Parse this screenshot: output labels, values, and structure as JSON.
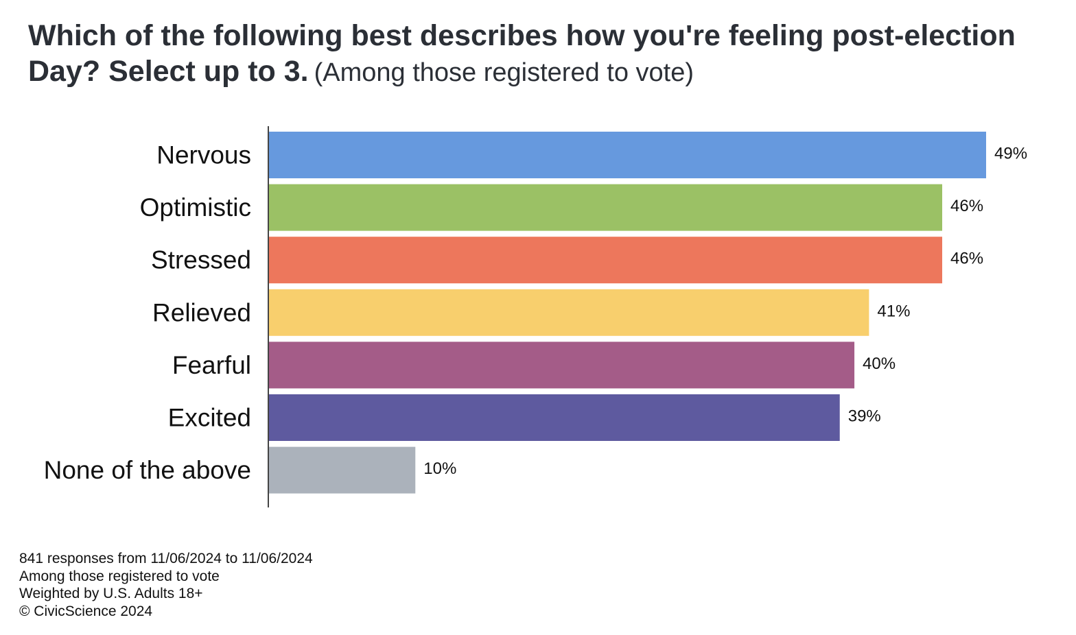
{
  "chart_data": {
    "type": "bar",
    "orientation": "horizontal",
    "title": "Which of the following best describes how you're feeling post-election Day? Select up to 3.",
    "subtitle": "(Among those registered to vote)",
    "categories": [
      "Nervous",
      "Optimistic",
      "Stressed",
      "Relieved",
      "Fearful",
      "Excited",
      "None of the above"
    ],
    "values": [
      49,
      46,
      46,
      41,
      40,
      39,
      10
    ],
    "value_labels": [
      "49%",
      "46%",
      "46%",
      "41%",
      "40%",
      "39%",
      "10%"
    ],
    "colors": [
      "#6699de",
      "#9bc165",
      "#ed775c",
      "#f8cf6d",
      "#a45c88",
      "#5e5a9f",
      "#abb2bb"
    ],
    "xlim": [
      0,
      49
    ],
    "grid": false,
    "legend": "none"
  },
  "footnotes": {
    "responses": "841 responses from 11/06/2024 to 11/06/2024",
    "population": "Among those registered to vote",
    "weighting": "Weighted by U.S. Adults 18+",
    "copyright": "© CivicScience 2024"
  }
}
